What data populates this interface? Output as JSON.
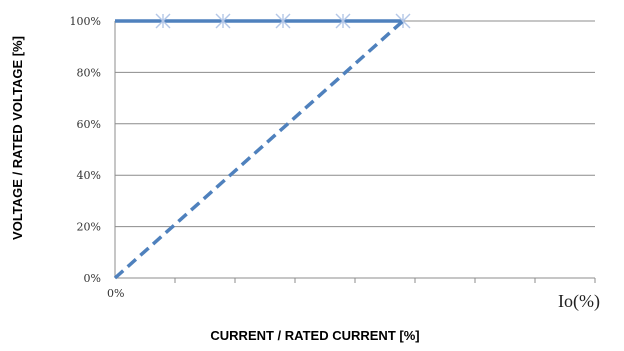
{
  "chart_data": {
    "type": "line",
    "title": "",
    "xlabel": "CURRENT / RATED CURRENT [%]",
    "ylabel": "VOLTAGE / RATED VOLTAGE [%]",
    "x_unit_label": "Io(%)",
    "x_origin_label": "0%",
    "xlim": [
      0,
      200
    ],
    "ylim": [
      0,
      100
    ],
    "yticks": [
      "0%",
      "20%",
      "40%",
      "60%",
      "80%",
      "100%"
    ],
    "x_minor_ticks": 8,
    "grid": "horizontal",
    "legend": "none",
    "series": [
      {
        "style": "solid",
        "color": "#4f81bd",
        "x": [
          0,
          20,
          45,
          70,
          95,
          120
        ],
        "y": [
          100,
          100,
          100,
          100,
          100,
          100
        ],
        "markers": [
          false,
          true,
          true,
          true,
          true,
          true
        ],
        "marker_color": "#b4c7e7"
      },
      {
        "style": "dashed",
        "color": "#4f81bd",
        "x": [
          0,
          120
        ],
        "y": [
          0,
          100
        ]
      }
    ]
  }
}
